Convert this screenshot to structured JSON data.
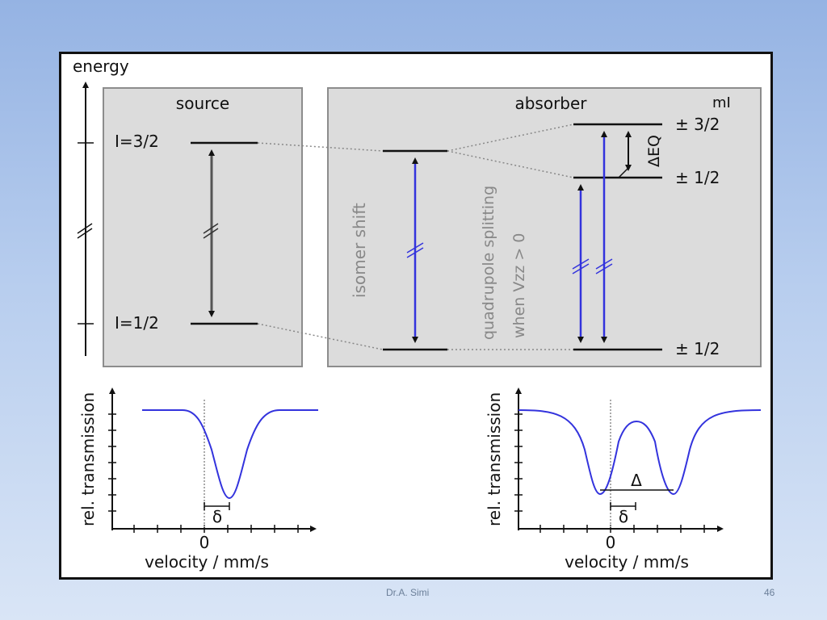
{
  "diagram": {
    "energy_label": "energy",
    "source": {
      "title": "source",
      "upper_level": "I=3/2",
      "lower_level": "I=1/2"
    },
    "absorber": {
      "title": "absorber",
      "m_label": "mI",
      "levels": [
        "± 3/2",
        "± 1/2",
        "± 1/2"
      ],
      "isomer_shift_label": "isomer shift",
      "quadrupole_label_line1": "quadrupole splitting",
      "quadrupole_label_line2": "when Vzz > 0",
      "delta_eq_label": "ΔEQ"
    },
    "spectrum_left": {
      "ylabel": "rel. transmission",
      "xlabel": "velocity / mm/s",
      "zero_label": "0",
      "shift_label": "δ"
    },
    "spectrum_right": {
      "ylabel": "rel. transmission",
      "xlabel": "velocity / mm/s",
      "zero_label": "0",
      "shift_label": "δ",
      "splitting_label": "Δ"
    }
  },
  "footer": {
    "author": "Dr.A. Simi",
    "page": "46"
  },
  "colors": {
    "transition_blue": "#3333dd",
    "panel_fill": "#dcdcdc",
    "panel_border": "#8c8c8c"
  }
}
